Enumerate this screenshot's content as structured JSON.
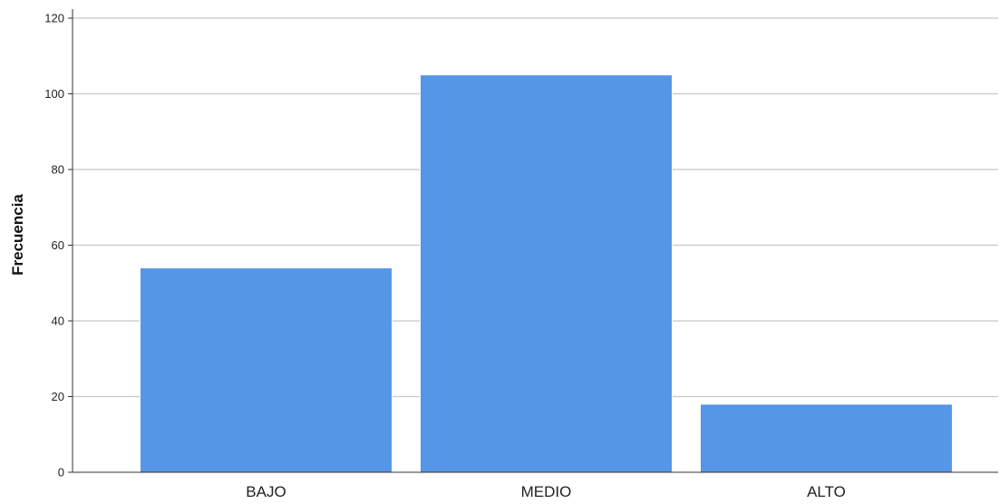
{
  "chart_data": {
    "type": "bar",
    "title": "",
    "xlabel": "",
    "ylabel": "Frecuencia",
    "categories": [
      "BAJO",
      "MEDIO",
      "ALTO"
    ],
    "values": [
      54,
      105,
      18
    ],
    "ylim": [
      0,
      120
    ],
    "yticks": [
      0,
      20,
      40,
      60,
      80,
      100,
      120
    ],
    "grid": true,
    "colors": {
      "bar": "#5596e6",
      "grid": "#c8c8c8",
      "axis": "#333333"
    }
  }
}
